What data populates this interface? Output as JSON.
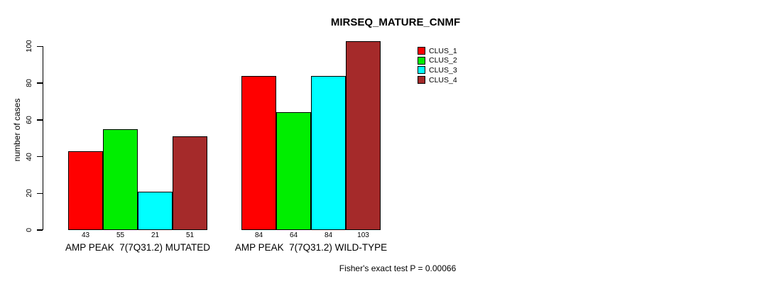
{
  "chart_data": {
    "type": "bar",
    "title": "MIRSEQ_MATURE_CNMF",
    "ylabel": "number of cases",
    "xlabel": "",
    "ylim": [
      0,
      100
    ],
    "yticks": [
      0,
      20,
      40,
      60,
      80,
      100
    ],
    "grid": false,
    "legend_position": "top-right-inside",
    "categories": [
      "AMP PEAK  7(7Q31.2) MUTATED",
      "AMP PEAK  7(7Q31.2) WILD-TYPE"
    ],
    "series": [
      {
        "name": "CLUS_1",
        "color": "#FF0000",
        "values": [
          43,
          84
        ]
      },
      {
        "name": "CLUS_2",
        "color": "#00EE00",
        "values": [
          55,
          64
        ]
      },
      {
        "name": "CLUS_3",
        "color": "#00FFFF",
        "values": [
          21,
          84
        ]
      },
      {
        "name": "CLUS_4",
        "color": "#A52A2A",
        "values": [
          51,
          103
        ]
      }
    ],
    "bar_value_labels_shown": true,
    "annotation": "Fisher's exact test P = 0.00066",
    "colors": {
      "axis": "#000000",
      "text": "#000000",
      "background": "#FFFFFF",
      "bar_border": "#000000"
    }
  }
}
